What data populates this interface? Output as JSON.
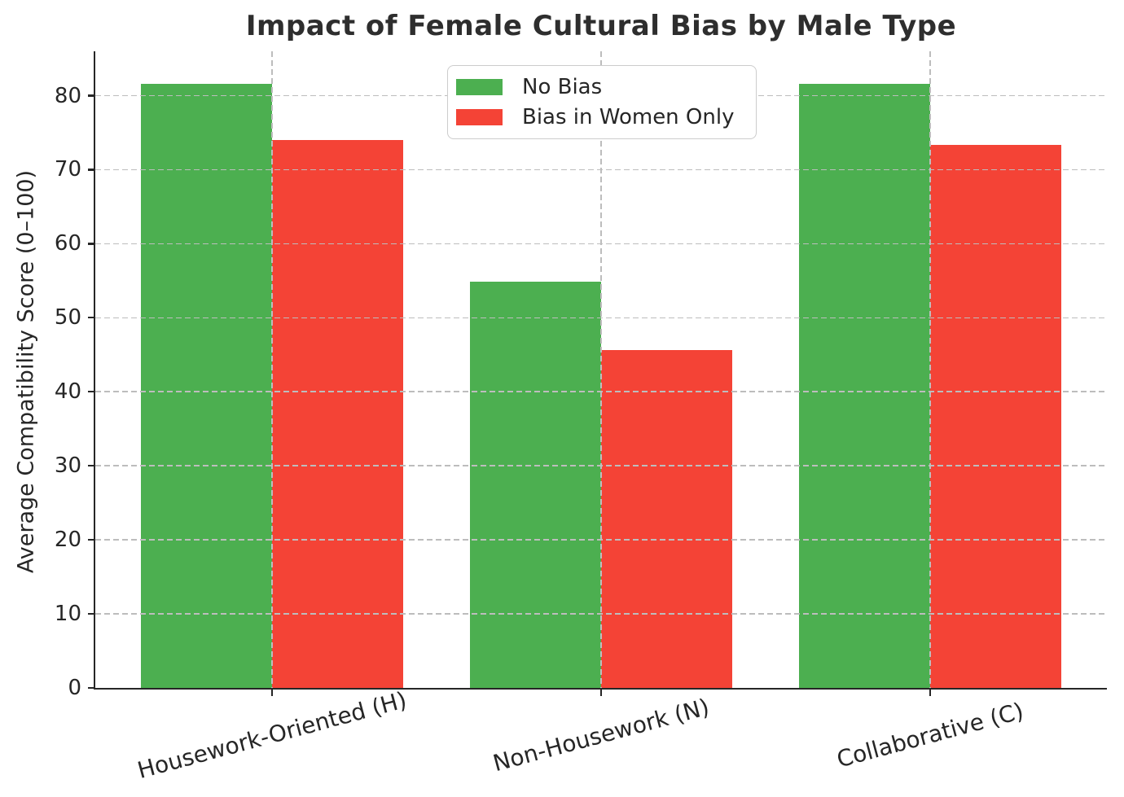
{
  "title": "Impact of Female Cultural Bias by Male Type",
  "colors": {
    "background": "#ffffff",
    "text": "#262626",
    "spine": "#262626",
    "grid": "#bdbdbd",
    "legend_border": "#cccccc",
    "no_bias_green": "#4caf50",
    "bias_red": "#f44336"
  },
  "chart_data": {
    "type": "bar",
    "title": "Impact of Female Cultural Bias by Male Type",
    "xlabel": "",
    "ylabel": "Average Compatibility Score (0–100)",
    "categories": [
      "Housework-Oriented (H)",
      "Non-Housework (N)",
      "Collaborative (C)"
    ],
    "series": [
      {
        "name": "No Bias",
        "color": "#4caf50",
        "values": [
          81.6,
          54.9,
          81.6
        ]
      },
      {
        "name": "Bias in Women Only",
        "color": "#f44336",
        "values": [
          74.0,
          45.6,
          73.3
        ]
      }
    ],
    "ylim": [
      0,
      86
    ],
    "yticks": [
      0,
      10,
      20,
      30,
      40,
      50,
      60,
      70,
      80
    ],
    "grid": true,
    "grid_style": "dashed",
    "grid_above_bars": true,
    "legend_position": "upper center",
    "x_tick_rotation_deg": 15
  }
}
